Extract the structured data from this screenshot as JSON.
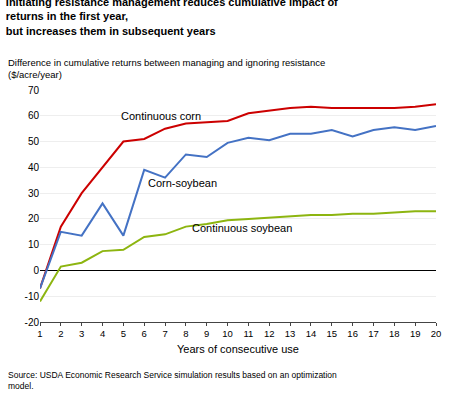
{
  "chart_data": {
    "type": "line",
    "title": [
      "Initiating resistance management reduces cumulative impact of returns in the first year,",
      "but increases them in subsequent years"
    ],
    "ylabel": "Difference in cumulative returns between managing and ignoring resistance ($/acre/year)",
    "xlabel": "Years of consecutive use",
    "source": "Source: USDA Economic Research Service simulation results based on an optimization model.",
    "x": [
      1,
      2,
      3,
      4,
      5,
      6,
      7,
      8,
      9,
      10,
      11,
      12,
      13,
      14,
      15,
      16,
      17,
      18,
      19,
      20
    ],
    "series": [
      {
        "color": "#cc0000",
        "values": [
          -7,
          17,
          30,
          40,
          50,
          51,
          55,
          57,
          57.5,
          58,
          61,
          62,
          63,
          63.5,
          63,
          63,
          63,
          63,
          63.5,
          64.5
        ]
      },
      {
        "color": "#4472c4",
        "values": [
          -7,
          15,
          13.5,
          26,
          13.5,
          39,
          36,
          45,
          44,
          49.5,
          51.5,
          50.5,
          53,
          53,
          54.5,
          52,
          54.5,
          55.5,
          54.5,
          56
        ]
      },
      {
        "color": "#8db510",
        "values": [
          -12,
          1.5,
          3,
          7.5,
          8,
          13,
          14,
          17,
          18,
          19.5,
          20,
          20.5,
          21,
          21.5,
          21.5,
          22,
          22,
          22.5,
          23,
          23
        ]
      }
    ],
    "annotations": [
      {
        "text": "Continuous corn",
        "x": 4.8,
        "y": 57
      },
      {
        "text": "Corn-soybean",
        "x": 6.1,
        "y": 31
      },
      {
        "text": "Continuous soybean",
        "x": 8.2,
        "y": 13.5
      }
    ],
    "xlim": [
      1,
      20
    ],
    "xticks": [
      1,
      2,
      3,
      4,
      5,
      6,
      7,
      8,
      9,
      10,
      11,
      12,
      13,
      14,
      15,
      16,
      17,
      18,
      19,
      20
    ],
    "ylim": [
      -20,
      70
    ],
    "yticks": [
      -20,
      -10,
      0,
      10,
      20,
      30,
      40,
      50,
      60,
      70
    ],
    "grid": true
  }
}
